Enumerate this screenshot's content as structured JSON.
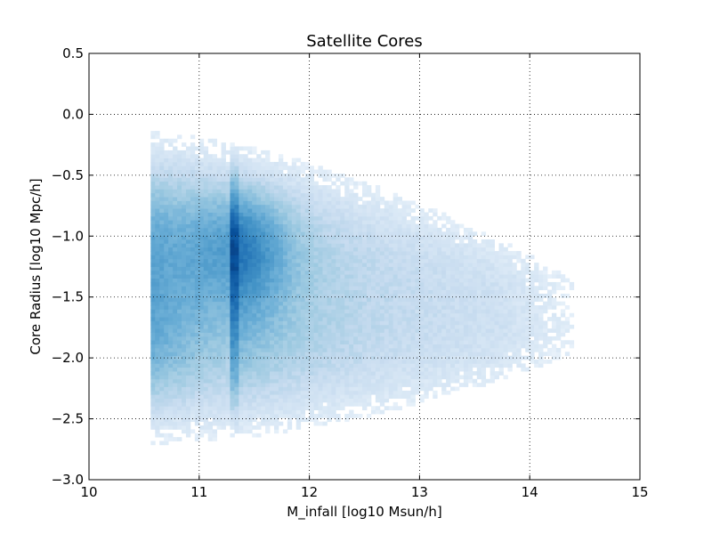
{
  "chart_data": {
    "type": "heatmap",
    "title": "Satellite Cores",
    "xlabel": "M_infall [log10 Msun/h]",
    "ylabel": "Core Radius [log10 Mpc/h]",
    "xlim": [
      10,
      15
    ],
    "ylim": [
      -3.0,
      0.5
    ],
    "xticks": [
      10,
      11,
      12,
      13,
      14,
      15
    ],
    "xtick_labels": [
      "10",
      "11",
      "12",
      "13",
      "14",
      "15"
    ],
    "yticks": [
      0.5,
      0.0,
      -0.5,
      -1.0,
      -1.5,
      -2.0,
      -2.5,
      -3.0
    ],
    "ytick_labels": [
      "0.5",
      "0.0",
      "−0.5",
      "−1.0",
      "−1.5",
      "−2.0",
      "−2.5",
      "−3.0"
    ],
    "grid": true,
    "colormap": "Blues",
    "color_low": "#f7fbff",
    "color_high": "#08306b",
    "density_description": {
      "x_support": [
        10.55,
        14.3
      ],
      "y_support_at_low_mass": [
        -2.7,
        -0.15
      ],
      "y_support_at_high_mass": [
        -2.0,
        -1.3
      ],
      "peak": {
        "x": 11.35,
        "y": -1.05
      },
      "vertical_enhancement_band": {
        "x": [
          11.28,
          11.36
        ]
      }
    }
  }
}
